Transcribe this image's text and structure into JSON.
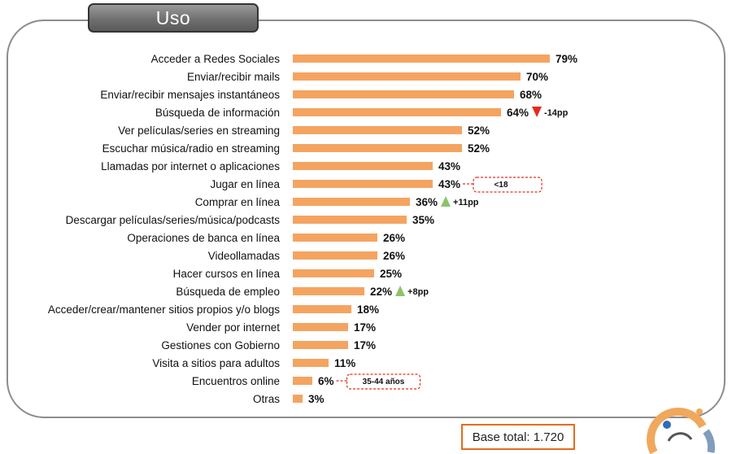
{
  "header": {
    "title": "Uso"
  },
  "chart_data": {
    "type": "bar",
    "orientation": "horizontal",
    "bar_color": "#f4a460",
    "categories": [
      "Acceder a Redes Sociales",
      "Enviar/recibir mails",
      "Enviar/recibir mensajes instantáneos",
      "Búsqueda de información",
      "Ver películas/series en streaming",
      "Escuchar música/radio en streaming",
      "Llamadas por internet o aplicaciones",
      "Jugar en línea",
      "Comprar en línea",
      "Descargar películas/series/música/podcasts",
      "Operaciones de banca en línea",
      "Videollamadas",
      "Hacer cursos en línea",
      "Búsqueda de empleo",
      "Acceder/crear/mantener sitios propios y/o blogs",
      "Vender por internet",
      "Gestiones con Gobierno",
      "Visita a sitios para adultos",
      "Encuentros online",
      "Otras"
    ],
    "values": [
      79,
      70,
      68,
      64,
      52,
      52,
      43,
      43,
      36,
      35,
      26,
      26,
      25,
      22,
      18,
      17,
      17,
      11,
      6,
      3
    ],
    "value_labels": [
      "79%",
      "70%",
      "68%",
      "64%",
      "52%",
      "52%",
      "43%",
      "43%",
      "36%",
      "35%",
      "26%",
      "26%",
      "25%",
      "22%",
      "18%",
      "17%",
      "17%",
      "11%",
      "6%",
      "3%"
    ],
    "changes": [
      {
        "index": 3,
        "direction": "down",
        "label": "-14pp",
        "color": "#e8281e"
      },
      {
        "index": 8,
        "direction": "up",
        "label": "+11pp",
        "color": "#8cc36a"
      },
      {
        "index": 13,
        "direction": "up",
        "label": "+8pp",
        "color": "#8cc36a"
      }
    ],
    "callouts": [
      {
        "index": 7,
        "label": "<18"
      },
      {
        "index": 18,
        "label": "35-44 años"
      }
    ],
    "xlim": [
      0,
      100
    ]
  },
  "footer": {
    "base": "Base total: 1.720"
  }
}
